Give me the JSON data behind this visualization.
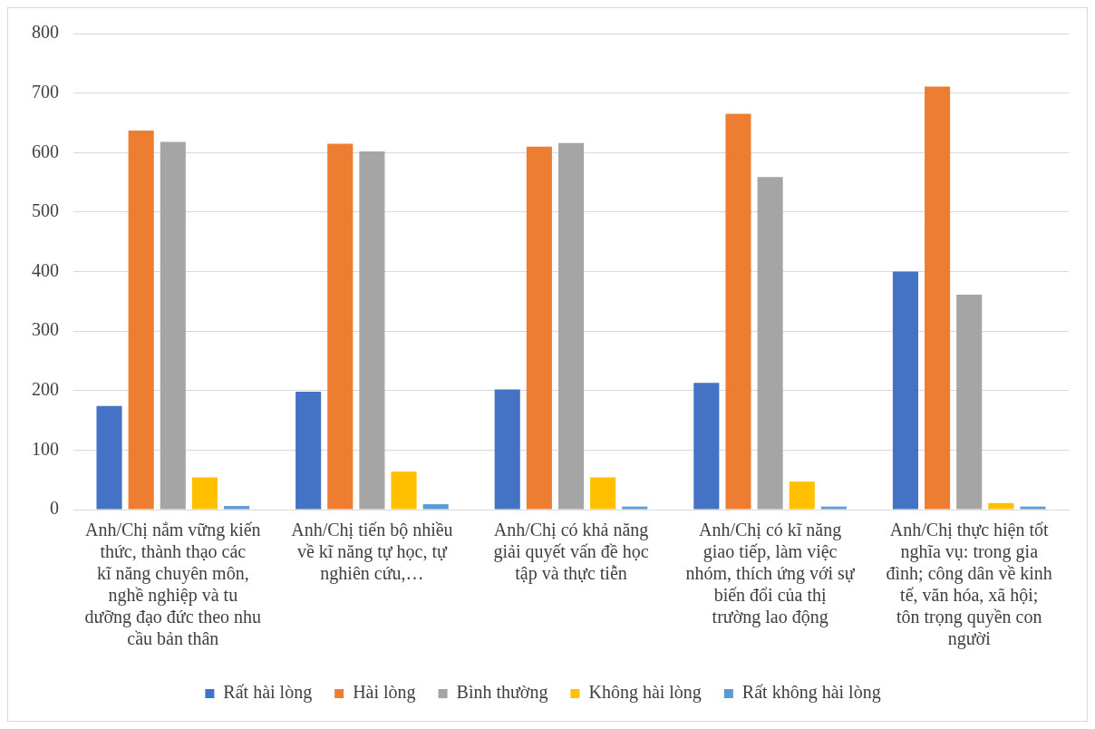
{
  "chart_data": {
    "type": "bar",
    "categories": [
      "Anh/Chị nắm vững kiến thức, thành thạo các kĩ năng chuyên môn, nghề nghiệp và tu dưỡng đạo đức theo nhu cầu bản thân",
      "Anh/Chị tiến bộ nhiều về kĩ năng tự học, tự nghiên cứu,…",
      "Anh/Chị có khả năng giải quyết vấn đề học tập và thực tiễn",
      "Anh/Chị có kĩ năng giao tiếp, làm việc nhóm, thích ứng với sự biến đổi của thị trường lao động",
      "Anh/Chị thực hiện tốt nghĩa vụ: trong gia đình; công dân về kinh tế, văn hóa, xã hội; tôn trọng quyền con người"
    ],
    "series": [
      {
        "name": "Rất hài lòng",
        "color": "#4472c4",
        "values": [
          174,
          198,
          202,
          213,
          400
        ]
      },
      {
        "name": "Hài lòng",
        "color": "#ed7d31",
        "values": [
          637,
          615,
          610,
          665,
          711
        ]
      },
      {
        "name": "Bình thường",
        "color": "#a5a5a5",
        "values": [
          618,
          602,
          616,
          559,
          361
        ]
      },
      {
        "name": "Không hài lòng",
        "color": "#ffc000",
        "values": [
          54,
          64,
          54,
          47,
          11
        ]
      },
      {
        "name": "Rất không hài lòng",
        "color": "#5b9bd5",
        "values": [
          6,
          9,
          5,
          5,
          5
        ]
      }
    ],
    "ylim": [
      0,
      800
    ],
    "yticks": [
      0,
      100,
      200,
      300,
      400,
      500,
      600,
      700,
      800
    ],
    "grid": "y",
    "legend": "bottom"
  }
}
